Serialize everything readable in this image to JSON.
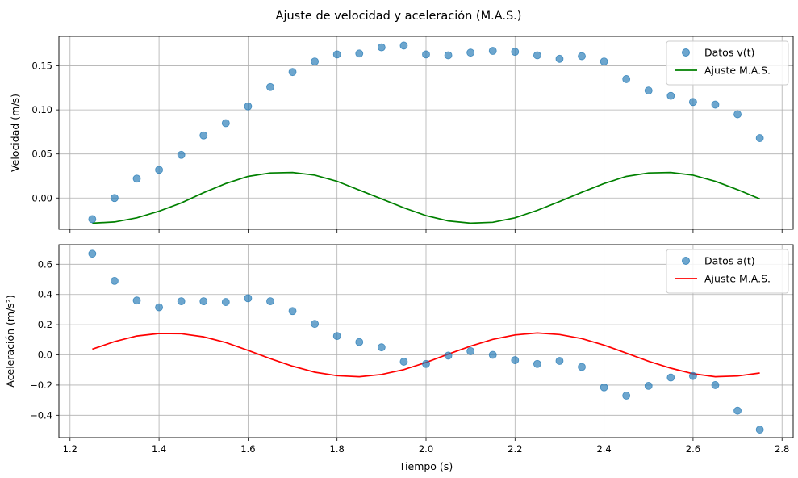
{
  "figure": {
    "suptitle": "Ajuste de velocidad y aceleración (M.A.S.)"
  },
  "chart_data": [
    {
      "type": "scatter",
      "title": "",
      "xlabel": "",
      "ylabel": "Velocidad (m/s)",
      "xlim": [
        1.175,
        2.825
      ],
      "ylim": [
        -0.0355,
        0.1835
      ],
      "xticks": [
        1.2,
        1.4,
        1.6,
        1.8,
        2.0,
        2.2,
        2.4,
        2.6,
        2.8
      ],
      "xtick_labels": [
        "",
        "",
        "",
        "",
        "",
        "",
        "",
        "",
        ""
      ],
      "yticks": [
        0.0,
        0.05,
        0.1,
        0.15
      ],
      "ytick_labels": [
        "0.00",
        "0.05",
        "0.10",
        "0.15"
      ],
      "grid": true,
      "legend": "top-right",
      "x": [
        1.25,
        1.3,
        1.35,
        1.4,
        1.45,
        1.5,
        1.55,
        1.6,
        1.65,
        1.7,
        1.75,
        1.8,
        1.85,
        1.9,
        1.95,
        2.0,
        2.05,
        2.1,
        2.15,
        2.2,
        2.25,
        2.3,
        2.35,
        2.4,
        2.45,
        2.5,
        2.55,
        2.6,
        2.65,
        2.7,
        2.75
      ],
      "series": [
        {
          "name": "Datos v(t)",
          "kind": "scatter",
          "color": "#1f77b4",
          "values": [
            -0.024,
            0.0,
            0.022,
            0.032,
            0.049,
            0.071,
            0.085,
            0.104,
            0.126,
            0.143,
            0.155,
            0.163,
            0.164,
            0.171,
            0.173,
            0.163,
            0.162,
            0.165,
            0.167,
            0.166,
            0.162,
            0.158,
            0.161,
            0.155,
            0.135,
            0.122,
            0.116,
            0.109,
            0.106,
            0.095,
            0.068
          ]
        },
        {
          "name": "Ajuste M.A.S.",
          "kind": "line",
          "color": "#008000",
          "values": [
            -0.0285,
            -0.0272,
            -0.0225,
            -0.015,
            -0.0055,
            0.006,
            0.0165,
            0.0245,
            0.0285,
            0.029,
            0.026,
            0.019,
            0.009,
            -0.001,
            -0.011,
            -0.02,
            -0.026,
            -0.0285,
            -0.0275,
            -0.0225,
            -0.014,
            -0.004,
            0.0065,
            0.0165,
            0.0245,
            0.0285,
            0.029,
            0.026,
            0.019,
            0.0095,
            -0.001
          ]
        }
      ]
    },
    {
      "type": "scatter",
      "title": "",
      "xlabel": "Tiempo (s)",
      "ylabel": "Aceleración (m/s²)",
      "xlim": [
        1.175,
        2.825
      ],
      "ylim": [
        -0.548,
        0.73
      ],
      "xticks": [
        1.2,
        1.4,
        1.6,
        1.8,
        2.0,
        2.2,
        2.4,
        2.6,
        2.8
      ],
      "xtick_labels": [
        "1.2",
        "1.4",
        "1.6",
        "1.8",
        "2.0",
        "2.2",
        "2.4",
        "2.6",
        "2.8"
      ],
      "yticks": [
        -0.4,
        -0.2,
        0.0,
        0.2,
        0.4,
        0.6
      ],
      "ytick_labels": [
        "−0.4",
        "−0.2",
        "0.0",
        "0.2",
        "0.4",
        "0.6"
      ],
      "grid": true,
      "legend": "top-right",
      "x": [
        1.25,
        1.3,
        1.35,
        1.4,
        1.45,
        1.5,
        1.55,
        1.6,
        1.65,
        1.7,
        1.75,
        1.8,
        1.85,
        1.9,
        1.95,
        2.0,
        2.05,
        2.1,
        2.15,
        2.2,
        2.25,
        2.3,
        2.35,
        2.4,
        2.45,
        2.5,
        2.55,
        2.6,
        2.65,
        2.7,
        2.75
      ],
      "series": [
        {
          "name": "Datos a(t)",
          "kind": "scatter",
          "color": "#1f77b4",
          "values": [
            0.67,
            0.49,
            0.36,
            0.315,
            0.355,
            0.355,
            0.35,
            0.375,
            0.355,
            0.29,
            0.205,
            0.125,
            0.085,
            0.05,
            -0.045,
            -0.06,
            -0.005,
            0.025,
            0.0,
            -0.035,
            -0.06,
            -0.04,
            -0.08,
            -0.215,
            -0.27,
            -0.205,
            -0.15,
            -0.14,
            -0.2,
            -0.37,
            -0.495
          ]
        },
        {
          "name": "Ajuste M.A.S.",
          "kind": "line",
          "color": "#ff0000",
          "values": [
            0.038,
            0.088,
            0.125,
            0.142,
            0.14,
            0.12,
            0.082,
            0.03,
            -0.025,
            -0.075,
            -0.115,
            -0.138,
            -0.145,
            -0.13,
            -0.098,
            -0.05,
            0.005,
            0.058,
            0.103,
            0.132,
            0.145,
            0.135,
            0.108,
            0.065,
            0.012,
            -0.042,
            -0.088,
            -0.125,
            -0.145,
            -0.14,
            -0.12
          ]
        }
      ]
    }
  ]
}
